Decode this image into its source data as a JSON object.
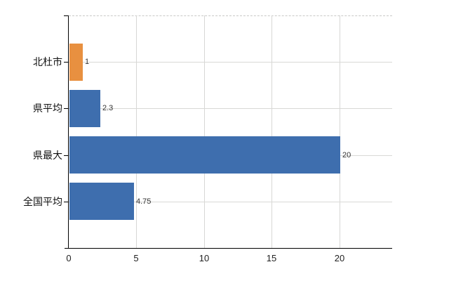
{
  "colors": {
    "bar_blue": "#3e6eae",
    "bar_orange": "#e89040",
    "gridline": "#d7d7d5",
    "gridline_dashed": "#c9c9c7",
    "axis": "#000000",
    "text": "#111111",
    "value_text": "#333333",
    "background": "#ffffff"
  },
  "chart_data": {
    "type": "bar",
    "orientation": "horizontal",
    "title": "",
    "xlabel": "",
    "ylabel": "",
    "legend": false,
    "grid": true,
    "categories": [
      "北杜市",
      "県平均",
      "県最大",
      "全国平均"
    ],
    "values": [
      1,
      2.3,
      20,
      4.75
    ],
    "value_labels": [
      "1",
      "2.3",
      "20",
      "4.75"
    ],
    "bar_colors": [
      "#e89040",
      "#3e6eae",
      "#3e6eae",
      "#3e6eae"
    ],
    "xticks": [
      0,
      5,
      10,
      15,
      20
    ],
    "xtick_labels": [
      "0",
      "5",
      "10",
      "15",
      "20"
    ],
    "xlim": [
      0,
      23.9
    ]
  }
}
